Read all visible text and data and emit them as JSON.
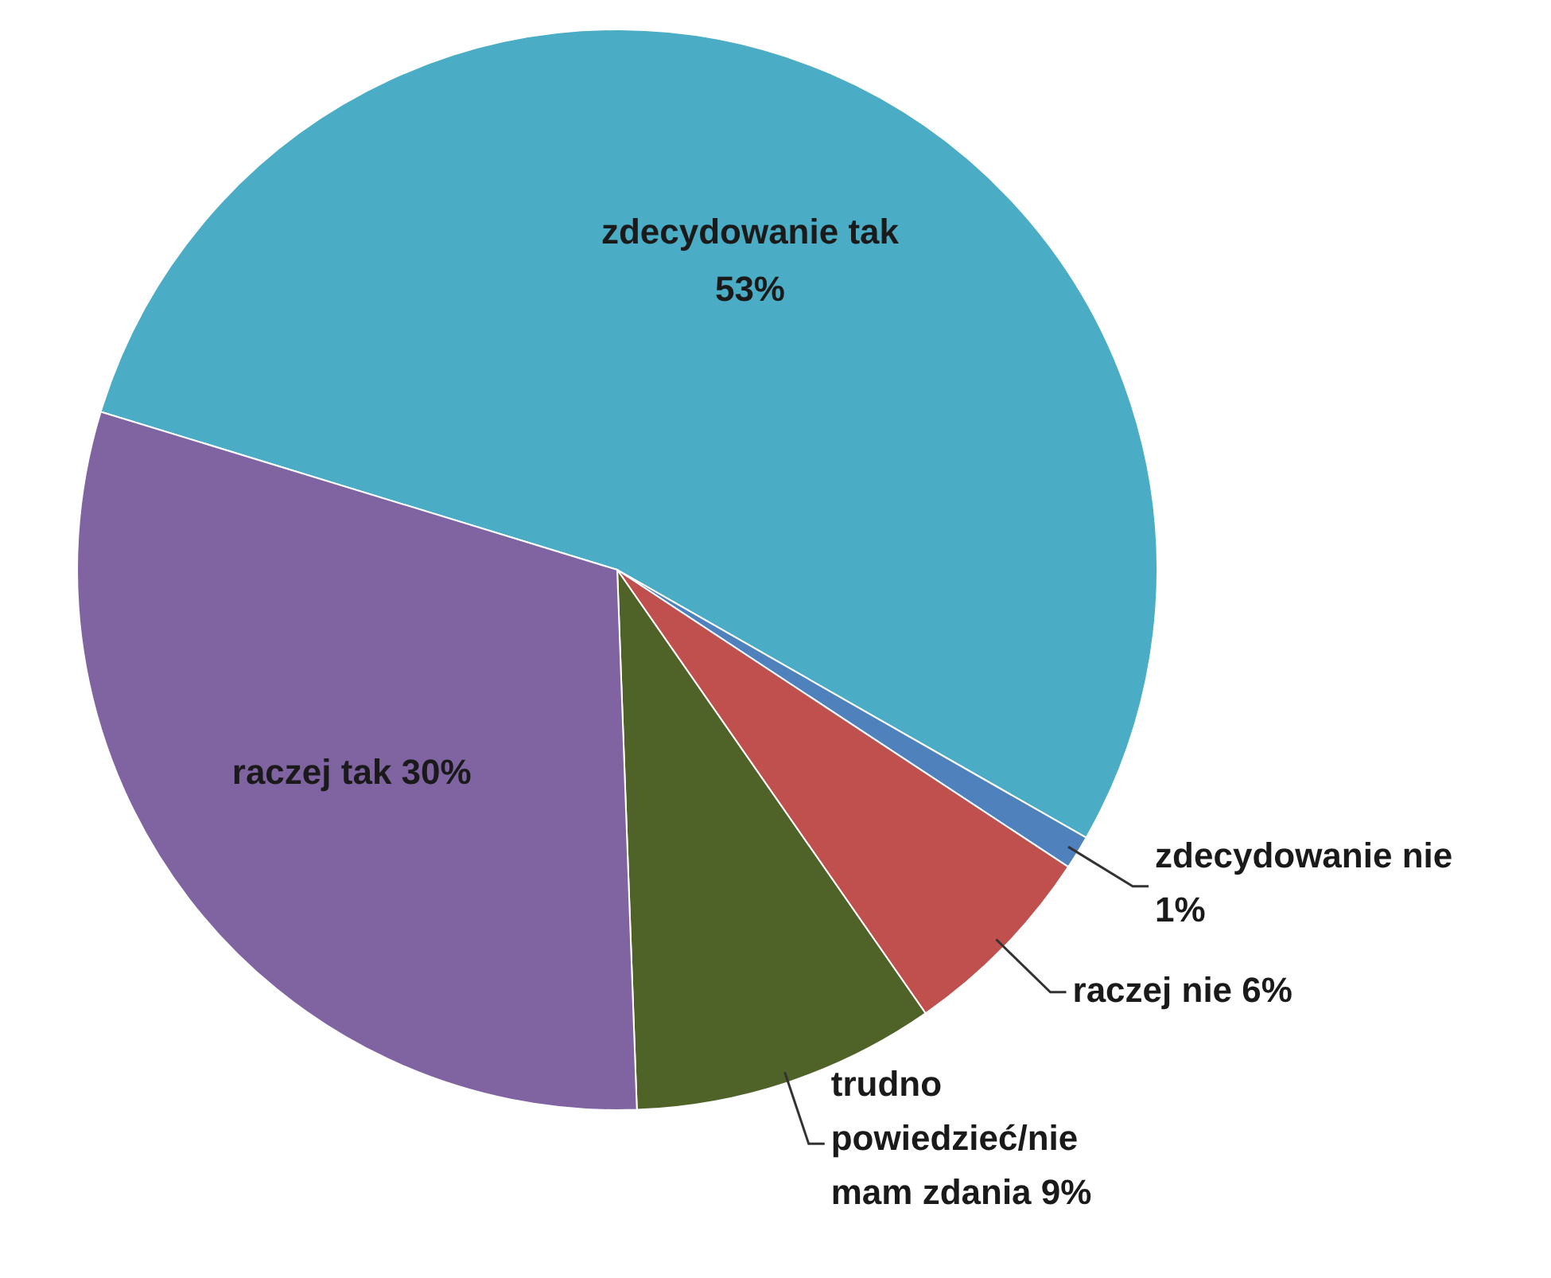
{
  "chart_data": {
    "type": "pie",
    "categories": [
      "zdecydowanie tak",
      "zdecydowanie nie",
      "raczej nie",
      "trudno powiedzieć/nie mam zdania",
      "raczej tak"
    ],
    "values": [
      53,
      1,
      6,
      9,
      30
    ],
    "value_labels": [
      "53%",
      "1%",
      "6%",
      "9%",
      "30%"
    ],
    "colors": [
      "#4bacc6",
      "#4f81bd",
      "#c0504d",
      "#4f6228",
      "#8064a2"
    ],
    "legend": false
  }
}
